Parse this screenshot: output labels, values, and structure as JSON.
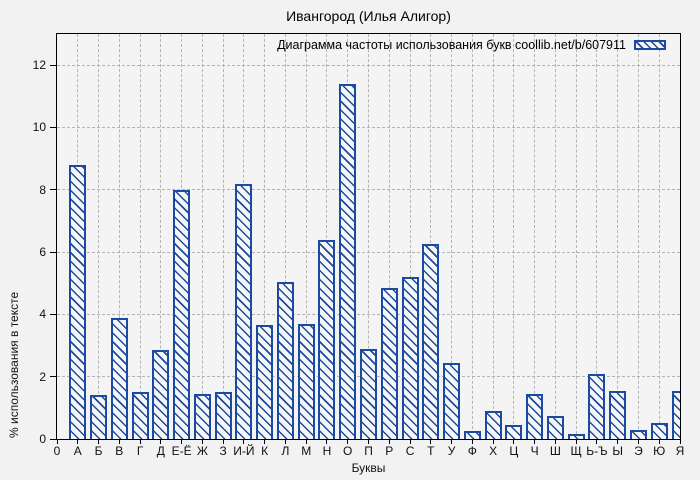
{
  "figure": {
    "title": "Ивангород (Илья Алигор)"
  },
  "chart_data": {
    "type": "bar",
    "title": "Ивангород (Илья Алигор)",
    "legend_label": "Диаграмма частоты использования букв coollib.net/b/607911",
    "legend_position": "top-right-inside",
    "xlabel": "Буквы",
    "ylabel": "% использования в тексте",
    "x_origin_label": "0",
    "categories": [
      "А",
      "Б",
      "В",
      "Г",
      "Д",
      "Е-Ё",
      "Ж",
      "З",
      "И-Й",
      "К",
      "Л",
      "М",
      "Н",
      "О",
      "П",
      "Р",
      "С",
      "Т",
      "У",
      "Ф",
      "Х",
      "Ц",
      "Ч",
      "Ш",
      "Щ",
      "Ь-Ъ",
      "Ы",
      "Э",
      "Ю",
      "Я"
    ],
    "values": [
      8.8,
      1.4,
      3.9,
      1.5,
      2.85,
      8.0,
      1.45,
      1.5,
      8.2,
      3.65,
      5.05,
      3.7,
      6.4,
      11.4,
      2.9,
      4.85,
      5.2,
      6.25,
      2.45,
      0.25,
      0.9,
      0.45,
      1.45,
      0.75,
      0.15,
      2.1,
      1.55,
      0.3,
      0.5,
      1.55
    ],
    "yticks": [
      0,
      2,
      4,
      6,
      8,
      10,
      12
    ],
    "ylim": [
      0,
      13
    ],
    "grid": true,
    "bar_style": "diagonal-hatch",
    "colors": {
      "bar": "#1b4aa2",
      "grid": "#b4b4b4",
      "axis": "#000000",
      "background": "#f2f2f2",
      "plot_background": "#f4f4f4"
    }
  }
}
